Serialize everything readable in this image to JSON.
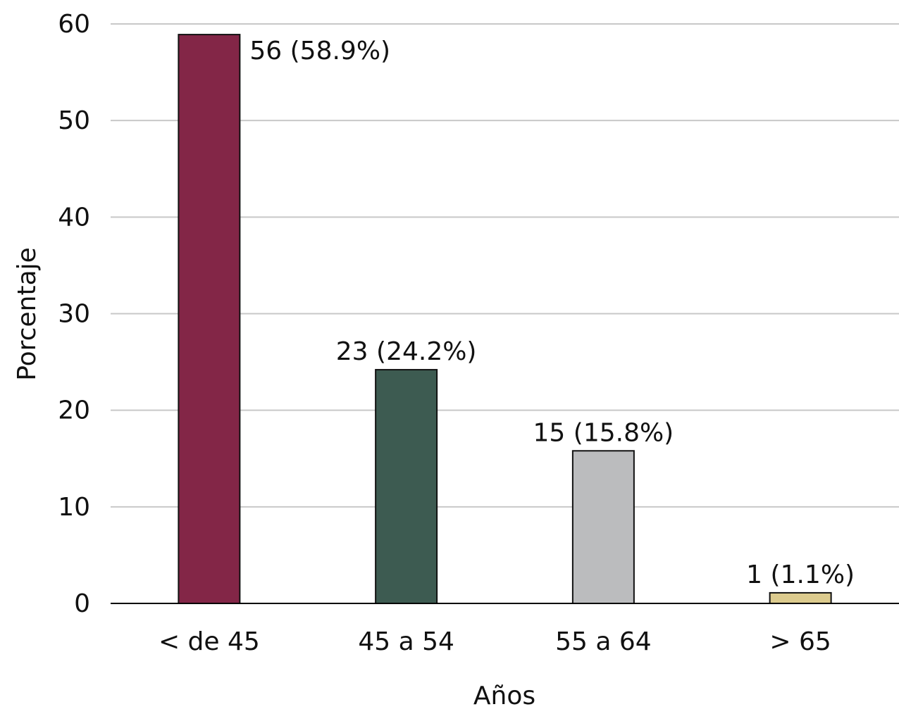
{
  "chart_data": {
    "type": "bar",
    "categories": [
      "< de 45",
      "45 a 54",
      "55 a 64",
      "> 65"
    ],
    "values": [
      58.9,
      24.2,
      15.8,
      1.1
    ],
    "data_labels": [
      "56 (58.9%)",
      "23 (24.2%)",
      "15 (15.8%)",
      "1 (1.1%)"
    ],
    "colors": [
      "#832647",
      "#3d5b51",
      "#bbbcbe",
      "#dccb8e"
    ],
    "title": "",
    "xlabel": "Años",
    "ylabel": "Porcentaje",
    "ylim": [
      0,
      60
    ],
    "yticks": [
      0,
      10,
      20,
      30,
      40,
      50,
      60
    ],
    "grid": true,
    "legend": "none"
  }
}
